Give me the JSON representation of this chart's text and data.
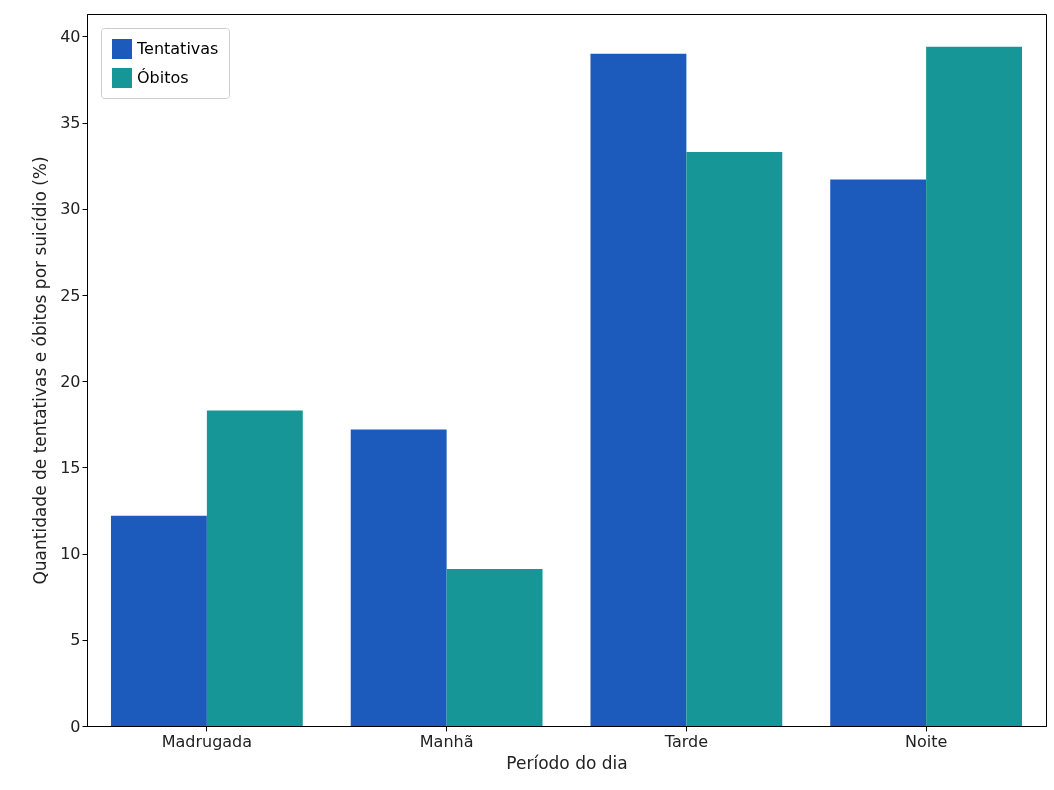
{
  "chart_data": {
    "type": "bar",
    "xlabel": "Período do dia",
    "ylabel": "Quantidade de tentativas e óbitos por suicídio (%)",
    "categories": [
      "Madrugada",
      "Manhã",
      "Tarde",
      "Noite"
    ],
    "series": [
      {
        "name": "Tentativas",
        "color": "#1c5bbb",
        "values": [
          12.2,
          17.2,
          39.0,
          31.7
        ]
      },
      {
        "name": "Óbitos",
        "color": "#169696",
        "values": [
          18.3,
          9.1,
          33.3,
          39.4
        ]
      }
    ],
    "ylim": [
      0,
      41.3
    ],
    "yticks": [
      0,
      5,
      10,
      15,
      20,
      25,
      30,
      35,
      40
    ],
    "legend": "top left"
  }
}
